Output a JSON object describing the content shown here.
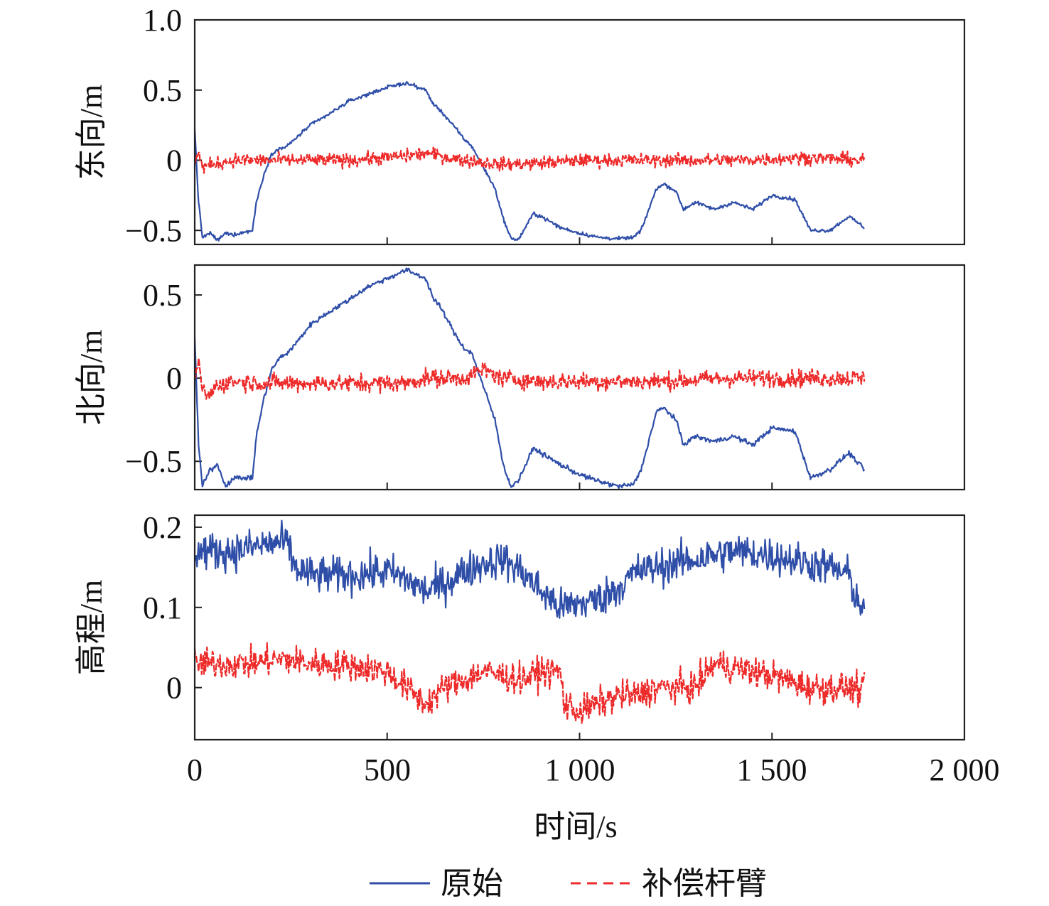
{
  "figure": {
    "xlabel": "时间/s",
    "x_ticks": [
      "0",
      "500",
      "1 000",
      "1 500",
      "2 000"
    ],
    "legend": [
      {
        "label": "原始",
        "style": "solid",
        "color": "#2f4ea8"
      },
      {
        "label": "补偿杆臂",
        "style": "dashed",
        "color": "#ee2b2b"
      }
    ]
  },
  "chart_data": [
    {
      "type": "line",
      "ylabel": "东向/m",
      "xlim": [
        0,
        2000
      ],
      "ylim": [
        -0.6,
        1.0
      ],
      "y_ticks": [
        1.0,
        0.5,
        0,
        -0.5
      ],
      "y_tick_labels": [
        "1.0",
        "0.5",
        "0",
        "−0.5"
      ],
      "series": [
        {
          "name": "原始",
          "color": "#2f4ea8",
          "style": "solid",
          "noise": 0.012,
          "x": [
            0,
            10,
            20,
            40,
            60,
            80,
            100,
            150,
            160,
            180,
            200,
            220,
            240,
            260,
            300,
            350,
            400,
            450,
            500,
            550,
            600,
            620,
            640,
            680,
            700,
            720,
            750,
            780,
            800,
            820,
            840,
            880,
            900,
            950,
            1000,
            1050,
            1100,
            1140,
            1160,
            1200,
            1220,
            1250,
            1270,
            1300,
            1350,
            1400,
            1450,
            1500,
            1560,
            1600,
            1650,
            1700,
            1740
          ],
          "y": [
            0.22,
            -0.3,
            -0.55,
            -0.52,
            -0.57,
            -0.52,
            -0.53,
            -0.5,
            -0.3,
            -0.1,
            0.05,
            0.08,
            0.1,
            0.15,
            0.25,
            0.33,
            0.42,
            0.47,
            0.52,
            0.55,
            0.5,
            0.4,
            0.35,
            0.22,
            0.15,
            0.1,
            -0.05,
            -0.2,
            -0.4,
            -0.55,
            -0.57,
            -0.38,
            -0.4,
            -0.48,
            -0.52,
            -0.55,
            -0.56,
            -0.55,
            -0.5,
            -0.2,
            -0.17,
            -0.22,
            -0.35,
            -0.3,
            -0.35,
            -0.3,
            -0.35,
            -0.25,
            -0.28,
            -0.5,
            -0.5,
            -0.4,
            -0.48
          ]
        },
        {
          "name": "补偿杆臂",
          "color": "#ee2b2b",
          "style": "dashed",
          "noise": 0.045,
          "x": [
            0,
            10,
            20,
            60,
            100,
            200,
            400,
            550,
            600,
            700,
            800,
            900,
            1000,
            1200,
            1400,
            1600,
            1740
          ],
          "y": [
            0.0,
            0.05,
            -0.05,
            -0.02,
            0.0,
            0.0,
            0.0,
            0.03,
            0.05,
            0.0,
            -0.03,
            -0.02,
            0.0,
            0.0,
            0.0,
            0.02,
            0.0
          ]
        }
      ]
    },
    {
      "type": "line",
      "ylabel": "北向/m",
      "xlim": [
        0,
        2000
      ],
      "ylim": [
        -0.67,
        0.68
      ],
      "y_ticks": [
        0.5,
        0,
        -0.5
      ],
      "y_tick_labels": [
        "0.5",
        "0",
        "−0.5"
      ],
      "series": [
        {
          "name": "原始",
          "color": "#2f4ea8",
          "style": "solid",
          "noise": 0.014,
          "x": [
            0,
            10,
            20,
            40,
            60,
            80,
            100,
            150,
            160,
            180,
            200,
            220,
            240,
            260,
            300,
            350,
            400,
            450,
            500,
            550,
            600,
            620,
            640,
            680,
            700,
            720,
            750,
            780,
            800,
            820,
            840,
            880,
            900,
            950,
            1000,
            1050,
            1100,
            1140,
            1160,
            1200,
            1220,
            1250,
            1270,
            1300,
            1350,
            1400,
            1450,
            1500,
            1560,
            1600,
            1650,
            1700,
            1740
          ],
          "y": [
            0.25,
            -0.4,
            -0.65,
            -0.55,
            -0.52,
            -0.65,
            -0.6,
            -0.6,
            -0.35,
            -0.12,
            0.05,
            0.12,
            0.15,
            0.2,
            0.32,
            0.4,
            0.47,
            0.55,
            0.6,
            0.65,
            0.6,
            0.48,
            0.42,
            0.25,
            0.18,
            0.15,
            -0.05,
            -0.25,
            -0.5,
            -0.65,
            -0.62,
            -0.42,
            -0.45,
            -0.52,
            -0.58,
            -0.62,
            -0.65,
            -0.64,
            -0.55,
            -0.2,
            -0.18,
            -0.25,
            -0.4,
            -0.35,
            -0.38,
            -0.35,
            -0.4,
            -0.3,
            -0.32,
            -0.6,
            -0.55,
            -0.45,
            -0.55
          ]
        },
        {
          "name": "补偿杆臂",
          "color": "#ee2b2b",
          "style": "dashed",
          "noise": 0.05,
          "x": [
            0,
            10,
            20,
            30,
            60,
            100,
            200,
            400,
            550,
            600,
            700,
            750,
            800,
            900,
            1000,
            1200,
            1400,
            1600,
            1740
          ],
          "y": [
            0.0,
            0.08,
            -0.05,
            -0.12,
            -0.04,
            -0.02,
            -0.03,
            -0.03,
            -0.03,
            0.0,
            0.0,
            0.05,
            0.0,
            -0.02,
            -0.02,
            -0.02,
            0.0,
            0.0,
            0.0
          ]
        }
      ]
    },
    {
      "type": "line",
      "ylabel": "高程/m",
      "xlim": [
        0,
        2000
      ],
      "ylim": [
        -0.065,
        0.215
      ],
      "y_ticks": [
        0.2,
        0.1,
        0
      ],
      "y_tick_labels": [
        "0.2",
        "0.1",
        "0"
      ],
      "series": [
        {
          "name": "原始",
          "color": "#2f4ea8",
          "style": "solid",
          "noise": 0.022,
          "x": [
            0,
            50,
            100,
            150,
            200,
            240,
            260,
            300,
            400,
            500,
            550,
            600,
            650,
            700,
            750,
            800,
            850,
            900,
            950,
            1000,
            1050,
            1100,
            1150,
            1200,
            1250,
            1300,
            1400,
            1500,
            1550,
            1600,
            1650,
            1700,
            1720,
            1740
          ],
          "y": [
            0.17,
            0.17,
            0.17,
            0.175,
            0.18,
            0.18,
            0.15,
            0.14,
            0.14,
            0.145,
            0.135,
            0.12,
            0.13,
            0.145,
            0.155,
            0.16,
            0.145,
            0.12,
            0.1,
            0.105,
            0.11,
            0.125,
            0.145,
            0.15,
            0.155,
            0.16,
            0.17,
            0.165,
            0.16,
            0.155,
            0.15,
            0.14,
            0.11,
            0.1
          ]
        },
        {
          "name": "补偿杆臂",
          "color": "#ee2b2b",
          "style": "dashed",
          "noise": 0.018,
          "x": [
            0,
            50,
            100,
            150,
            200,
            240,
            300,
            400,
            500,
            550,
            600,
            650,
            700,
            750,
            800,
            850,
            900,
            950,
            960,
            1000,
            1050,
            1100,
            1150,
            1200,
            1250,
            1300,
            1350,
            1400,
            1500,
            1600,
            1700,
            1740
          ],
          "y": [
            0.03,
            0.03,
            0.03,
            0.03,
            0.035,
            0.035,
            0.03,
            0.028,
            0.02,
            0.0,
            -0.02,
            0.0,
            0.01,
            0.02,
            0.015,
            0.01,
            0.02,
            0.02,
            -0.02,
            -0.03,
            -0.02,
            -0.01,
            -0.01,
            0.0,
            0.0,
            0.0,
            0.03,
            0.025,
            0.015,
            0.0,
            0.0,
            -0.005
          ]
        }
      ]
    }
  ]
}
